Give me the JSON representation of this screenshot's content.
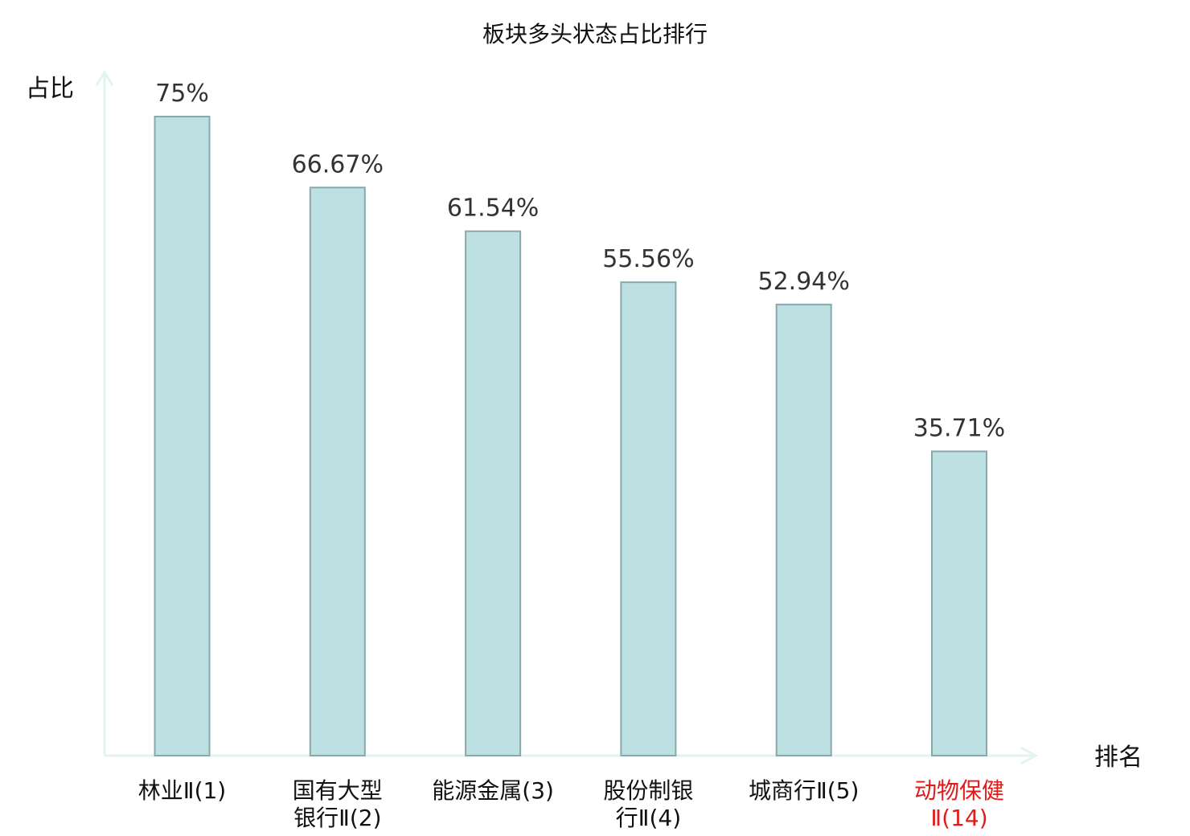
{
  "chart_data": {
    "type": "bar",
    "title": "板块多头状态占比排行",
    "ylabel": "占比",
    "xlabel": "排名",
    "ylim": [
      0,
      80
    ],
    "grid": false,
    "legend": "none",
    "categories": [
      {
        "lines": [
          {
            "name": "林业",
            "suffix": "Ⅱ(1)"
          }
        ],
        "highlight": false
      },
      {
        "lines": [
          {
            "name": "国有大型",
            "suffix": ""
          },
          {
            "name": "银行",
            "suffix": "Ⅱ(2)"
          }
        ],
        "highlight": false
      },
      {
        "lines": [
          {
            "name": "能源金属",
            "suffix": "(3)"
          }
        ],
        "highlight": false
      },
      {
        "lines": [
          {
            "name": "股份制银",
            "suffix": ""
          },
          {
            "name": "行",
            "suffix": "Ⅱ(4)"
          }
        ],
        "highlight": false
      },
      {
        "lines": [
          {
            "name": "城商行",
            "suffix": "Ⅱ(5)"
          }
        ],
        "highlight": false
      },
      {
        "lines": [
          {
            "name": "动物保健",
            "suffix": ""
          },
          {
            "name": "",
            "suffix": "Ⅱ(14)"
          }
        ],
        "highlight": true
      }
    ],
    "values": [
      75,
      66.67,
      61.54,
      55.56,
      52.94,
      35.71
    ],
    "value_labels": [
      "75%",
      "66.67%",
      "61.54%",
      "55.56%",
      "52.94%",
      "35.71%"
    ],
    "colors": {
      "bar_fill": "#bde0e3",
      "bar_stroke": "#8aa8ab",
      "axis": "#e3f3f0",
      "highlight_text": "#e31a1a"
    }
  }
}
